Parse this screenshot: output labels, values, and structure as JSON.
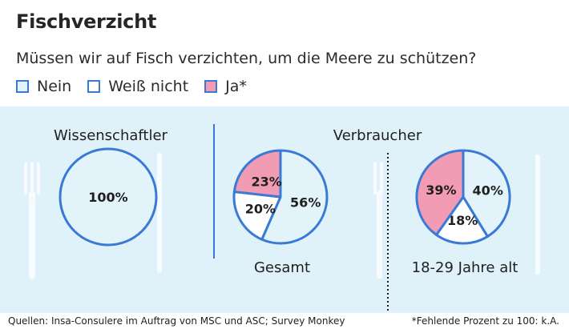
{
  "title": "Fischverzicht",
  "question": "Müssen wir auf Fisch verzichten, um die Meere zu schützen?",
  "legend": [
    {
      "label": "Nein",
      "color": "#e2f3fa"
    },
    {
      "label": "Weiß nicht",
      "color": "#ffffff"
    },
    {
      "label": "Ja*",
      "color": "#f19bb4"
    }
  ],
  "colors": {
    "outline": "#3a7ad6",
    "band": "#dff1f9"
  },
  "group_headers": {
    "left": "Wissenschaftler",
    "right": "Verbraucher"
  },
  "chart_data": [
    {
      "type": "pie",
      "title": "Wissenschaftler",
      "caption": "",
      "slices": [
        {
          "category": "Nein",
          "value": 100,
          "label": "100%"
        }
      ]
    },
    {
      "type": "pie",
      "title": "",
      "caption": "Gesamt",
      "slices": [
        {
          "category": "Nein",
          "value": 56,
          "label": "56%"
        },
        {
          "category": "Weiß nicht",
          "value": 20,
          "label": "20%"
        },
        {
          "category": "Ja*",
          "value": 23,
          "label": "23%"
        }
      ]
    },
    {
      "type": "pie",
      "title": "",
      "caption": "18-29 Jahre alt",
      "slices": [
        {
          "category": "Nein",
          "value": 40,
          "label": "40%"
        },
        {
          "category": "Weiß nicht",
          "value": 18,
          "label": "18%"
        },
        {
          "category": "Ja*",
          "value": 39,
          "label": "39%"
        }
      ]
    }
  ],
  "footer": {
    "source": "Quellen: Insa-Consulere im Auftrag von MSC und ASC; Survey Monkey",
    "note": "*Fehlende Prozent zu 100: k.A."
  }
}
